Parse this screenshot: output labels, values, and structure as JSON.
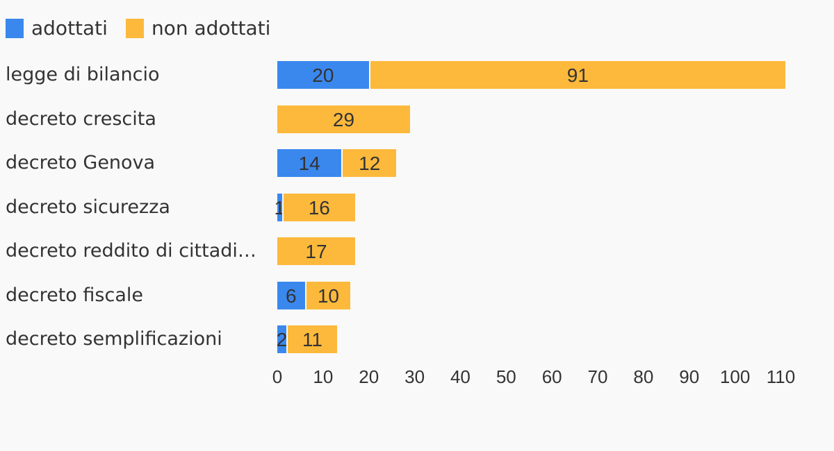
{
  "colors": {
    "adottati": "#3a88ee",
    "non_adottati": "#fdb93c",
    "background": "#f9f9f9",
    "text": "#333333"
  },
  "legend": [
    {
      "label": "adottati",
      "color": "#3a88ee"
    },
    {
      "label": "non adottati",
      "color": "#fdb93c"
    }
  ],
  "chart_data": {
    "type": "bar",
    "orientation": "horizontal",
    "stacked": true,
    "title": "",
    "xlabel": "",
    "ylabel": "",
    "categories": [
      "legge di bilancio",
      "decreto crescita",
      "decreto Genova",
      "decreto sicurezza",
      "decreto reddito di cittadi…",
      "decreto fiscale",
      "decreto semplificazioni"
    ],
    "series": [
      {
        "name": "adottati",
        "color": "#3a88ee",
        "values": [
          20,
          0,
          14,
          1,
          0,
          6,
          2
        ]
      },
      {
        "name": "non adottati",
        "color": "#fdb93c",
        "values": [
          91,
          29,
          12,
          16,
          17,
          10,
          11
        ]
      }
    ],
    "x_axis": {
      "range": [
        0,
        110
      ],
      "ticks": [
        0,
        10,
        20,
        30,
        40,
        50,
        60,
        70,
        80,
        90,
        100,
        110
      ]
    },
    "value_labels_shown": true,
    "grid": false,
    "legend_position": "top-left"
  }
}
